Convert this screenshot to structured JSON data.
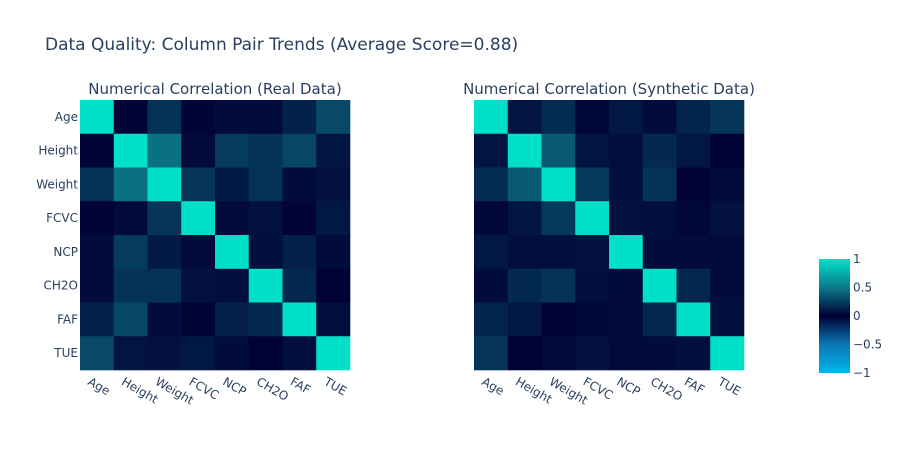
{
  "chart_data": {
    "type": "heatmap",
    "title": "Data Quality: Column Pair Trends (Average Score=0.88)",
    "labels": [
      "Age",
      "Height",
      "Weight",
      "FCVC",
      "NCP",
      "CH2O",
      "FAF",
      "TUE"
    ],
    "colorscale": {
      "range": [
        -1,
        1
      ],
      "stops": [
        [
          0.0,
          "#00b6f0"
        ],
        [
          0.25,
          "#0a78b4"
        ],
        [
          0.5,
          "#000033"
        ],
        [
          0.75,
          "#0b7a8a"
        ],
        [
          1.0,
          "#00e0c8"
        ]
      ],
      "ticks": [
        "1",
        "0.5",
        "0",
        "−0.5",
        "−1"
      ],
      "tick_values": [
        1,
        0.5,
        0,
        -0.5,
        -1
      ]
    },
    "panels": [
      {
        "title": "Numerical Correlation (Real Data)",
        "z": [
          [
            1.0,
            0.02,
            0.2,
            0.02,
            0.05,
            0.05,
            0.14,
            0.3
          ],
          [
            0.02,
            1.0,
            0.46,
            0.04,
            0.24,
            0.21,
            0.29,
            0.08
          ],
          [
            0.2,
            0.46,
            1.0,
            0.22,
            0.11,
            0.2,
            0.05,
            0.07
          ],
          [
            0.02,
            0.04,
            0.22,
            1.0,
            0.04,
            0.07,
            0.02,
            0.1
          ],
          [
            0.05,
            0.24,
            0.11,
            0.04,
            1.0,
            0.06,
            0.13,
            0.05
          ],
          [
            0.05,
            0.21,
            0.2,
            0.07,
            0.06,
            1.0,
            0.17,
            0.01
          ],
          [
            0.14,
            0.29,
            0.05,
            0.02,
            0.13,
            0.17,
            1.0,
            0.06
          ],
          [
            0.3,
            0.08,
            0.07,
            0.1,
            0.05,
            0.01,
            0.06,
            1.0
          ]
        ]
      },
      {
        "title": "Numerical Correlation (Synthetic Data)",
        "z": [
          [
            1.0,
            0.08,
            0.18,
            0.03,
            0.1,
            0.05,
            0.15,
            0.22
          ],
          [
            0.08,
            1.0,
            0.37,
            0.08,
            0.06,
            0.17,
            0.1,
            0.01
          ],
          [
            0.18,
            0.37,
            1.0,
            0.23,
            0.06,
            0.21,
            0.01,
            0.04
          ],
          [
            0.03,
            0.08,
            0.23,
            1.0,
            0.07,
            0.06,
            0.03,
            0.07
          ],
          [
            0.1,
            0.06,
            0.06,
            0.07,
            1.0,
            0.05,
            0.05,
            0.04
          ],
          [
            0.05,
            0.17,
            0.21,
            0.06,
            0.05,
            1.0,
            0.16,
            0.05
          ],
          [
            0.15,
            0.1,
            0.01,
            0.03,
            0.05,
            0.16,
            1.0,
            0.06
          ],
          [
            0.22,
            0.01,
            0.04,
            0.07,
            0.04,
            0.05,
            0.06,
            1.0
          ]
        ]
      }
    ]
  }
}
